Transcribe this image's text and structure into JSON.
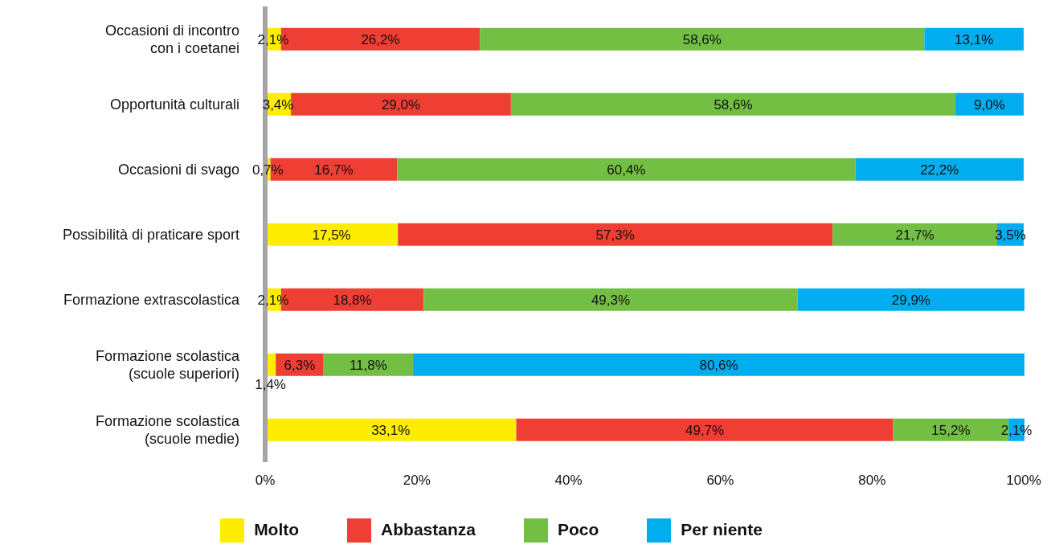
{
  "chart_data": {
    "type": "bar",
    "orientation": "horizontal",
    "stacked": true,
    "categories": [
      "Occasioni di incontro\ncon i coetanei",
      "Opportunità culturali",
      "Occasioni di svago",
      "Possibilità di praticare sport",
      "Formazione extrascolastica",
      "Formazione scolastica\n(scuole superiori)",
      "Formazione scolastica\n(scuole medie)"
    ],
    "series": [
      {
        "name": "Molto",
        "color": "#ffed00",
        "values": [
          2.1,
          3.4,
          0.7,
          17.5,
          2.1,
          1.4,
          33.1
        ],
        "value_labels": [
          "2,1%",
          "3,4%",
          "0,7%",
          "17,5%",
          "2,1%",
          "1,4%",
          "33,1%"
        ]
      },
      {
        "name": "Abbastanza",
        "color": "#ef3e33",
        "values": [
          26.2,
          29.0,
          16.7,
          57.3,
          18.8,
          6.3,
          49.7
        ],
        "value_labels": [
          "26,2%",
          "29,0%",
          "16,7%",
          "57,3%",
          "18,8%",
          "6,3%",
          "49,7%"
        ]
      },
      {
        "name": "Poco",
        "color": "#72bf44",
        "values": [
          58.6,
          58.6,
          60.4,
          21.7,
          49.3,
          11.8,
          15.2
        ],
        "value_labels": [
          "58,6%",
          "58,6%",
          "60,4%",
          "21,7%",
          "49,3%",
          "11,8%",
          "15,2%"
        ]
      },
      {
        "name": "Per niente",
        "color": "#00aeef",
        "values": [
          13.1,
          9.0,
          22.2,
          3.5,
          29.9,
          80.6,
          2.1
        ],
        "value_labels": [
          "13,1%",
          "9,0%",
          "22,2%",
          "3,5%",
          "29,9%",
          "80,6%",
          "2,1%"
        ]
      }
    ],
    "xlim": [
      0,
      100.1
    ],
    "xticks": [
      {
        "value": 0,
        "label": "0%"
      },
      {
        "value": 20,
        "label": "20%"
      },
      {
        "value": 40,
        "label": "40%"
      },
      {
        "value": 60,
        "label": "60%"
      },
      {
        "value": 80,
        "label": "80%"
      },
      {
        "value": 100,
        "label": "100%"
      }
    ],
    "grid": false,
    "legend": "bottom"
  }
}
